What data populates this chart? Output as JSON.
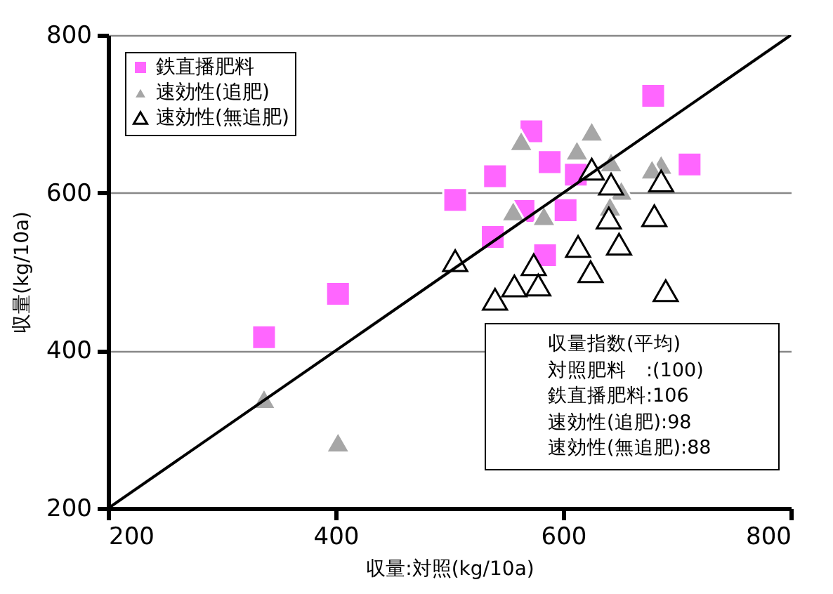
{
  "chart_data": {
    "type": "scatter",
    "xlabel": "収量:対照(kg/10a)",
    "ylabel": "収量(kg/10a)",
    "xlim": [
      200,
      800
    ],
    "xticks": [
      200,
      400,
      600,
      800
    ],
    "ylim": [
      200,
      800
    ],
    "yticks": [
      200,
      400,
      600,
      800
    ],
    "grid": "y",
    "legend": "top left",
    "series": [
      {
        "name": "鉄直播肥料",
        "color": "#ff66ff",
        "marker": "square",
        "x": [
          337,
          402,
          679,
          572,
          588,
          540,
          611,
          711,
          505,
          565,
          602,
          538,
          584
        ],
        "values": [
          417,
          472,
          723,
          678,
          639,
          621,
          623,
          636,
          591,
          577,
          578,
          544,
          521
        ]
      },
      {
        "name": "速効性(追肥)",
        "color": "#a6a6a6",
        "marker": "triangle",
        "x": [
          337,
          402,
          563,
          625,
          612,
          642,
          686,
          678,
          651,
          556,
          583,
          641
        ],
        "values": [
          339,
          284,
          666,
          678,
          654,
          639,
          636,
          630,
          603,
          577,
          571,
          583
        ]
      },
      {
        "name": "速効性(無追肥)",
        "color": "#ffffff",
        "marker": "triangle",
        "x": [
          625,
          642,
          686,
          640,
          680,
          649,
          613,
          505,
          574,
          624,
          557,
          578,
          540,
          690
        ],
        "values": [
          630,
          611,
          615,
          568,
          571,
          535,
          532,
          514,
          509,
          500,
          482,
          483,
          465,
          476
        ]
      },
      {
        "type": "line",
        "color": "#000000",
        "x": [
          200,
          800
        ],
        "values": [
          200,
          800
        ]
      }
    ],
    "annotations": [
      "収量指数(平均)",
      "対照肥料　:(100)",
      "鉄直播肥料:106",
      "速効性(追肥):98",
      "速効性(無追肥):88"
    ]
  }
}
